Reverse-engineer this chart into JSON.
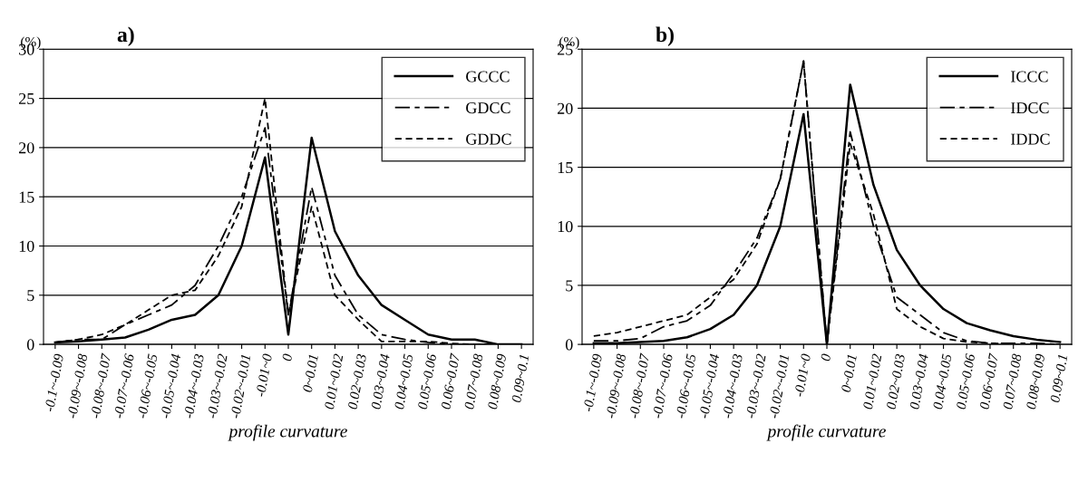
{
  "chart_data": [
    {
      "type": "line",
      "title": "a)",
      "ylabel": "(%)",
      "xlabel": "profile curvature",
      "categories": [
        "-0.1~-0.09",
        "-0.09~-0.08",
        "-0.08~-0.07",
        "-0.07~-0.06",
        "-0.06~-0.05",
        "-0.05~-0.04",
        "-0.04~-0.03",
        "-0.03~-0.02",
        "-0.02~-0.01",
        "-0.01~0",
        "0",
        "0~0.01",
        "0.01~0.02",
        "0.02~0.03",
        "0.03~0.04",
        "0.04~0.05",
        "0.05~0.06",
        "0.06~0.07",
        "0.07~0.08",
        "0.08~0.09",
        "0.09~0.1"
      ],
      "series": [
        {
          "name": "GCCC",
          "color": "#000000",
          "line_style": "solid",
          "values": [
            0.2,
            0.3,
            0.5,
            0.7,
            1.5,
            2.5,
            3,
            5,
            10,
            19,
            1,
            21,
            11.5,
            7,
            4,
            2.5,
            1,
            0.5,
            0.5,
            0,
            0
          ]
        },
        {
          "name": "GDCC",
          "color": "#000000",
          "line_style": "dashed",
          "values": [
            0.2,
            0.5,
            0.5,
            2,
            3,
            4,
            6,
            10,
            15,
            22,
            3,
            16,
            7,
            3,
            1,
            0.5,
            0.2,
            0,
            0,
            0,
            0
          ]
        },
        {
          "name": "GDDC",
          "color": "#000000",
          "line_style": "dotted",
          "values": [
            0.2,
            0.5,
            1,
            2,
            3.5,
            5,
            5.5,
            9,
            14,
            25,
            3,
            14,
            5,
            2.5,
            0.3,
            0.3,
            0.3,
            0.1,
            0,
            0,
            0
          ]
        }
      ],
      "ylim": [
        0,
        30
      ],
      "yticks": [
        0,
        5,
        10,
        15,
        20,
        25,
        30
      ],
      "grid": "y",
      "legend": "top right",
      "marker": "none"
    },
    {
      "type": "line",
      "title": "b)",
      "ylabel": "(%)",
      "xlabel": "profile curvature",
      "categories": [
        "-0.1~-0.09",
        "-0.09~-0.08",
        "-0.08~-0.07",
        "-0.07~-0.06",
        "-0.06~-0.05",
        "-0.05~-0.04",
        "-0.04~-0.03",
        "-0.03~-0.02",
        "-0.02~-0.01",
        "-0.01~0",
        "0",
        "0~0.01",
        "0.01~0.02",
        "0.02~0.03",
        "0.03~0.04",
        "0.04~0.05",
        "0.05~0.06",
        "0.06~0.07",
        "0.07~0.08",
        "0.08~0.09",
        "0.09~0.1"
      ],
      "series": [
        {
          "name": "ICCC",
          "color": "#000000",
          "line_style": "solid",
          "values": [
            0.1,
            0.1,
            0.2,
            0.3,
            0.6,
            1.3,
            2.5,
            5,
            10,
            19.5,
            0,
            22,
            13.5,
            8,
            5,
            3,
            1.8,
            1.2,
            0.7,
            0.4,
            0.2
          ]
        },
        {
          "name": "IDCC",
          "color": "#000000",
          "line_style": "dashed",
          "values": [
            0.3,
            0.3,
            0.5,
            1.5,
            2,
            3.3,
            6,
            9,
            14,
            24,
            0,
            18,
            10,
            4,
            2.5,
            1,
            0.3,
            0.1,
            0.1,
            0.1,
            0
          ]
        },
        {
          "name": "IDDC",
          "color": "#000000",
          "line_style": "dotted",
          "values": [
            0.7,
            1,
            1.5,
            2,
            2.5,
            4,
            5.5,
            8.5,
            14,
            24,
            0,
            17,
            11,
            3,
            1.5,
            0.5,
            0.2,
            0.1,
            0,
            0,
            0
          ]
        }
      ],
      "ylim": [
        0,
        25
      ],
      "yticks": [
        0,
        5,
        10,
        15,
        20,
        25
      ],
      "grid": "y",
      "legend": "top right",
      "marker": "none"
    }
  ]
}
